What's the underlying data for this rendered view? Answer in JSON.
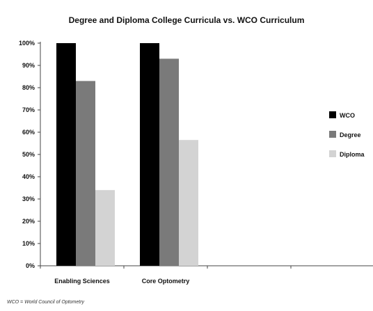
{
  "chart_data": {
    "type": "bar",
    "title": "Degree and Diploma College Curricula vs. WCO Curriculum",
    "categories": [
      "Enabling Sciences",
      "Core Optometry"
    ],
    "series": [
      {
        "name": "WCO",
        "values": [
          100,
          100
        ],
        "color": "#000000"
      },
      {
        "name": "Degree",
        "values": [
          83,
          93
        ],
        "color": "#7a7a7a"
      },
      {
        "name": "Diploma",
        "values": [
          34,
          56.5
        ],
        "color": "#d3d3d3"
      }
    ],
    "yticks": [
      "0%",
      "10%",
      "20%",
      "30%",
      "40%",
      "50%",
      "60%",
      "70%",
      "80%",
      "90%",
      "100%"
    ],
    "ylim": [
      0,
      100
    ],
    "grid": false,
    "legend": "right",
    "xlabel": "",
    "ylabel": ""
  },
  "footnote": "WCO = World Council of Optometry"
}
